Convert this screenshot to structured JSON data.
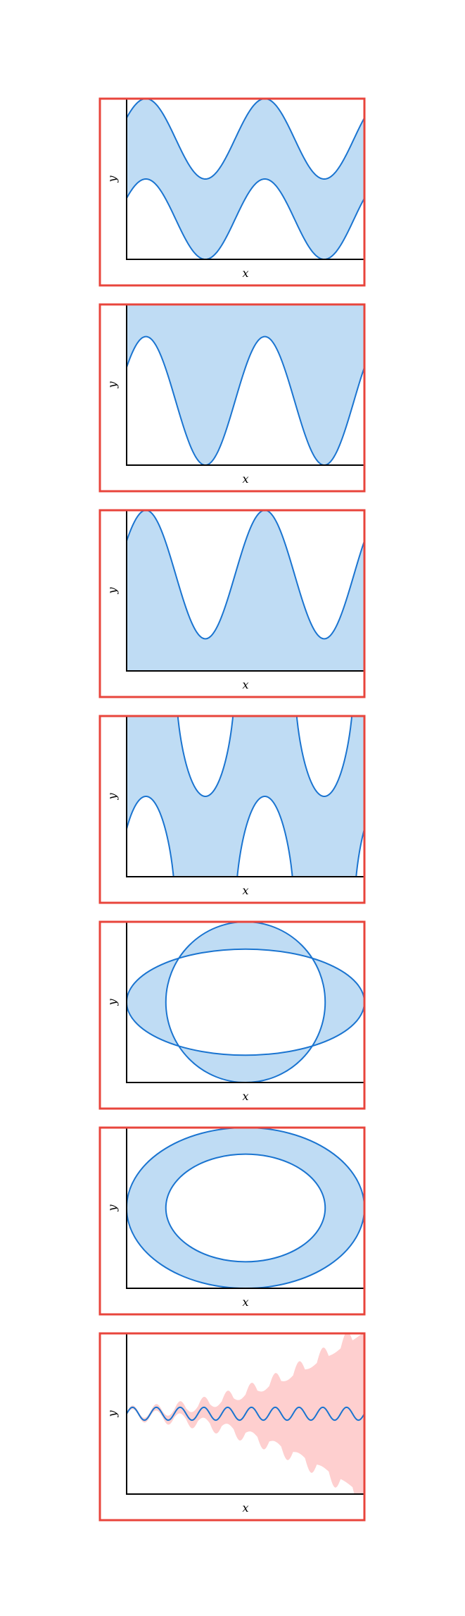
{
  "colors": {
    "frame": "#e8453c",
    "axes": "#000000",
    "line": "#1a74d0",
    "fill_blue": "#bfdcf4",
    "fill_pink": "#fecfcf"
  },
  "chart_data": [
    {
      "type": "area",
      "xlabel": "x",
      "ylabel": "y",
      "xlim": [
        0,
        2
      ],
      "ylim": [
        0,
        2
      ],
      "grid": false,
      "description_fill": "fill_between",
      "series": [
        {
          "name": "",
          "kind": "sine",
          "amplitude": 0.5,
          "periods": 2,
          "offset": 1.5,
          "phase_deg": 0
        },
        {
          "name": "",
          "kind": "sine",
          "amplitude": 0.5,
          "periods": 2,
          "offset": 0.5,
          "phase_deg": 0
        }
      ]
    },
    {
      "type": "area",
      "xlabel": "x",
      "ylabel": "y",
      "xlim": [
        0,
        2
      ],
      "ylim": [
        0,
        2
      ],
      "grid": false,
      "series": [
        {
          "name": "",
          "kind": "sine",
          "amplitude": 0.5,
          "periods": 2,
          "offset": 2.5,
          "phase_deg": 0
        },
        {
          "name": "",
          "kind": "sine",
          "amplitude": 0.8,
          "periods": 2,
          "offset": 0.8,
          "phase_deg": 0
        }
      ]
    },
    {
      "type": "area",
      "xlabel": "x",
      "ylabel": "y",
      "xlim": [
        0,
        2
      ],
      "ylim": [
        0,
        2
      ],
      "grid": false,
      "series": [
        {
          "name": "",
          "kind": "sine",
          "amplitude": 0.8,
          "periods": 2,
          "offset": 1.2,
          "phase_deg": 0
        },
        {
          "name": "",
          "kind": "sine",
          "amplitude": 0.5,
          "periods": 2,
          "offset": -0.5,
          "phase_deg": 0
        }
      ]
    },
    {
      "type": "area",
      "xlabel": "x",
      "ylabel": "y",
      "xlim": [
        0,
        2
      ],
      "ylim": [
        0,
        2
      ],
      "grid": false,
      "series": [
        {
          "name": "",
          "kind": "sine",
          "amplitude": 1.6,
          "periods": 2,
          "offset": 2.6,
          "phase_deg": 0,
          "sharp": true
        },
        {
          "name": "",
          "kind": "sine",
          "amplitude": 1.6,
          "periods": 2,
          "offset": -0.6,
          "phase_deg": 0,
          "sharp": true
        }
      ]
    },
    {
      "type": "area",
      "xlabel": "x",
      "ylabel": "y",
      "xlim": [
        -1,
        1
      ],
      "ylim": [
        -1,
        1
      ],
      "grid": false,
      "series": [
        {
          "name": "",
          "kind": "ellipse",
          "rx": 1.0,
          "ry": 0.66
        },
        {
          "name": "",
          "kind": "ellipse",
          "rx": 0.67,
          "ry": 1.0
        }
      ]
    },
    {
      "type": "area",
      "xlabel": "x",
      "ylabel": "y",
      "xlim": [
        -1,
        1
      ],
      "ylim": [
        -1,
        1
      ],
      "grid": false,
      "series": [
        {
          "name": "",
          "kind": "ellipse",
          "rx": 1.0,
          "ry": 1.0
        },
        {
          "name": "",
          "kind": "ellipse",
          "rx": 0.67,
          "ry": 0.67
        }
      ]
    },
    {
      "type": "line",
      "xlabel": "x",
      "ylabel": "y",
      "xlim": [
        0,
        10
      ],
      "ylim": [
        -1,
        1
      ],
      "grid": false,
      "series": [
        {
          "name": "",
          "kind": "damped_band",
          "center_amplitude": 0.08,
          "cycles": 10,
          "band_growth": 1.0
        }
      ]
    }
  ]
}
